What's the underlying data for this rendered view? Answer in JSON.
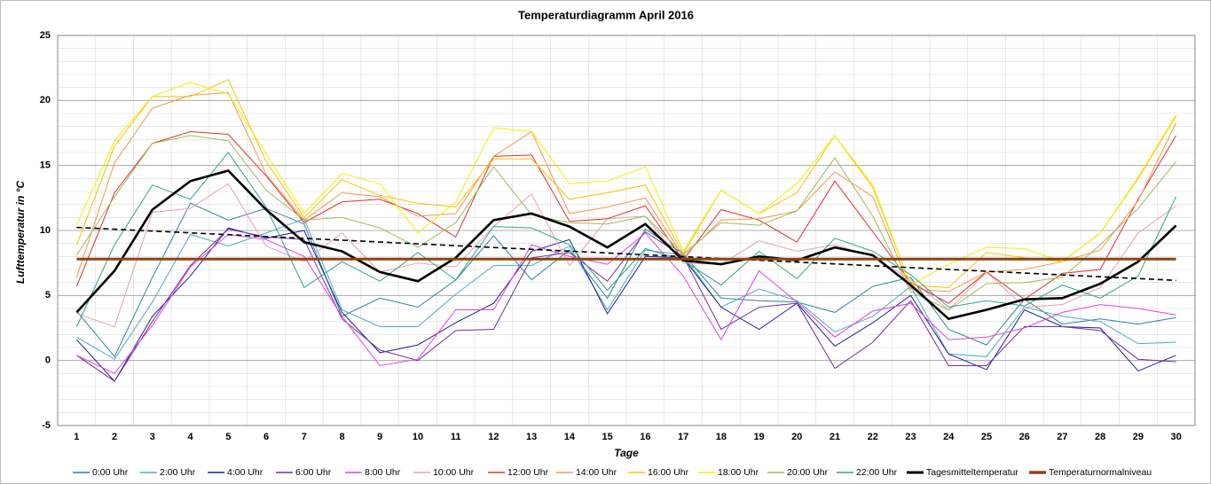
{
  "chart_data": {
    "type": "line",
    "title": "Temperaturdiagramm April 2016",
    "x_label": "Tage",
    "y_label": "Lufttemperatur in °C",
    "categories": [
      "1",
      "2",
      "3",
      "4",
      "5",
      "6",
      "7",
      "8",
      "9",
      "10",
      "11",
      "12",
      "13",
      "14",
      "15",
      "16",
      "17",
      "18",
      "19",
      "20",
      "21",
      "22",
      "23",
      "24",
      "25",
      "26",
      "27",
      "28",
      "29",
      "30"
    ],
    "ylim": [
      -5,
      25
    ],
    "yticks": [
      -5,
      0,
      5,
      10,
      15,
      20,
      25
    ],
    "grid": true,
    "legend": "bottom",
    "series": [
      {
        "name": "0:00 Uhr",
        "color": "#31849b",
        "values": [
          3.8,
          0.3,
          6.4,
          12.1,
          10.8,
          11.7,
          10.5,
          3.4,
          4.8,
          4.1,
          6.2,
          9.6,
          6.2,
          8.5,
          4.8,
          10.1,
          8.2,
          4.8,
          4.6,
          4.5,
          3.7,
          5.7,
          6.4,
          2.4,
          1.2,
          4.7,
          2.8,
          3.2,
          2.8,
          3.3
        ]
      },
      {
        "name": "2:00 Uhr",
        "color": "#4bacc6",
        "values": [
          1.8,
          0.1,
          4.5,
          9.7,
          8.8,
          9.8,
          10.9,
          3.9,
          2.6,
          2.6,
          5.1,
          7.3,
          7.3,
          8.8,
          3.9,
          8.5,
          8.1,
          4.1,
          5.5,
          4.6,
          2.2,
          3.4,
          5.7,
          0.5,
          0.3,
          4.1,
          3.4,
          3.0,
          1.3,
          1.4
        ]
      },
      {
        "name": "4:00 Uhr",
        "color": "#1f1fa0",
        "values": [
          1.6,
          -1.6,
          3.4,
          6.5,
          10.2,
          9.4,
          10.0,
          3.7,
          0.6,
          1.2,
          2.9,
          4.4,
          8.4,
          9.3,
          3.6,
          8.0,
          7.9,
          4.1,
          2.4,
          4.4,
          1.1,
          2.9,
          5.0,
          0.5,
          -0.7,
          3.9,
          2.6,
          2.5,
          -0.8,
          0.4
        ]
      },
      {
        "name": "6:00 Uhr",
        "color": "#7030a0",
        "values": [
          0.4,
          -1.6,
          3.0,
          7.3,
          10.1,
          9.5,
          9.3,
          3.2,
          0.8,
          0.0,
          2.3,
          2.4,
          7.9,
          8.3,
          6.1,
          9.9,
          8.0,
          2.4,
          4.1,
          4.4,
          -0.6,
          1.4,
          4.6,
          -0.4,
          -0.4,
          2.6,
          2.6,
          2.3,
          0.1,
          -0.1
        ]
      },
      {
        "name": "8:00 Uhr",
        "color": "#e040e0",
        "values": [
          0.4,
          -1.0,
          2.7,
          7.2,
          9.7,
          9.3,
          8.0,
          3.4,
          -0.4,
          0.1,
          3.9,
          3.9,
          8.9,
          8.0,
          7.4,
          9.8,
          6.5,
          1.6,
          6.9,
          4.5,
          1.8,
          3.8,
          4.4,
          1.6,
          1.8,
          2.5,
          3.7,
          4.3,
          4.0,
          3.5
        ]
      },
      {
        "name": "10:00 Uhr",
        "color": "#e6a0b4",
        "values": [
          3.6,
          2.6,
          11.4,
          11.7,
          13.6,
          8.8,
          7.6,
          9.8,
          6.8,
          7.5,
          7.2,
          10.3,
          12.8,
          7.3,
          10.9,
          11.1,
          7.5,
          7.4,
          9.2,
          8.4,
          8.9,
          8.0,
          6.2,
          3.9,
          6.8,
          4.1,
          4.3,
          5.6,
          9.8,
          11.9
        ]
      },
      {
        "name": "12:00 Uhr",
        "color": "#e0302c",
        "values": [
          5.7,
          12.9,
          16.7,
          17.6,
          17.4,
          14.2,
          10.6,
          12.2,
          12.4,
          11.3,
          9.5,
          15.7,
          15.8,
          10.7,
          10.9,
          11.9,
          7.7,
          11.6,
          10.8,
          9.1,
          13.8,
          9.9,
          6.0,
          4.4,
          6.8,
          4.7,
          6.7,
          7.0,
          12.4,
          17.3
        ]
      },
      {
        "name": "14:00 Uhr",
        "color": "#f79646",
        "values": [
          6.4,
          15.2,
          19.4,
          20.4,
          20.6,
          14.3,
          10.8,
          12.9,
          12.6,
          11.1,
          11.3,
          15.7,
          17.6,
          11.3,
          11.8,
          12.5,
          8.0,
          10.8,
          10.9,
          11.5,
          14.5,
          12.6,
          5.5,
          5.3,
          6.8,
          7.0,
          7.6,
          8.5,
          12.3,
          18.3
        ]
      },
      {
        "name": "16:00 Uhr",
        "color": "#ffc000",
        "values": [
          8.9,
          16.5,
          20.3,
          20.3,
          21.6,
          15.3,
          11.0,
          13.9,
          12.7,
          12.1,
          11.8,
          15.5,
          15.5,
          12.4,
          12.9,
          13.5,
          8.2,
          13.1,
          11.3,
          12.9,
          17.3,
          13.3,
          5.8,
          5.6,
          8.3,
          7.9,
          7.6,
          9.8,
          14.0,
          18.8
        ]
      },
      {
        "name": "18:00 Uhr",
        "color": "#f0f000",
        "values": [
          10.4,
          16.9,
          20.3,
          21.4,
          20.5,
          15.9,
          11.3,
          14.4,
          13.6,
          9.8,
          12.2,
          17.9,
          17.6,
          13.6,
          13.8,
          14.9,
          8.4,
          13.1,
          11.3,
          13.6,
          17.3,
          13.5,
          5.8,
          7.4,
          8.7,
          8.6,
          7.6,
          9.8,
          14.1,
          18.9
        ]
      },
      {
        "name": "20:00 Uhr",
        "color": "#9bbb59",
        "values": [
          8.1,
          12.6,
          16.7,
          17.3,
          16.9,
          13.1,
          10.8,
          11.0,
          10.2,
          8.7,
          10.6,
          14.9,
          11.2,
          10.6,
          10.5,
          11.1,
          8.2,
          10.6,
          10.4,
          11.5,
          15.6,
          11.1,
          5.3,
          3.9,
          5.9,
          6.0,
          6.4,
          8.9,
          11.7,
          15.3
        ]
      },
      {
        "name": "22:00 Uhr",
        "color": "#2ca58d",
        "values": [
          2.6,
          8.9,
          13.5,
          12.4,
          16.0,
          11.8,
          5.6,
          7.6,
          6.1,
          8.3,
          6.2,
          10.3,
          10.2,
          8.9,
          5.4,
          8.6,
          7.7,
          5.8,
          8.4,
          6.3,
          9.4,
          8.4,
          6.6,
          4.1,
          4.6,
          4.2,
          5.8,
          4.8,
          6.5,
          12.6
        ]
      },
      {
        "name": "Tagesmitteltemperatur",
        "color": "#000000",
        "trendline": true,
        "values": [
          3.7,
          6.9,
          11.6,
          13.8,
          14.6,
          11.6,
          9.1,
          8.4,
          6.8,
          6.1,
          7.9,
          10.8,
          11.3,
          10.3,
          8.7,
          10.5,
          7.7,
          7.4,
          8.0,
          7.7,
          8.7,
          8.1,
          5.8,
          3.2,
          3.9,
          4.7,
          4.8,
          5.9,
          7.6,
          10.38
        ]
      },
      {
        "name": "Temperaturnormalniveau",
        "color": "#8b4513",
        "values": [
          7.8,
          7.8,
          7.8,
          7.8,
          7.8,
          7.8,
          7.8,
          7.8,
          7.8,
          7.8,
          7.8,
          7.8,
          7.8,
          7.8,
          7.8,
          7.8,
          7.8,
          7.8,
          7.8,
          7.8,
          7.8,
          7.8,
          7.8,
          7.8,
          7.8,
          7.8,
          7.8,
          7.8,
          7.8,
          7.8
        ]
      }
    ]
  }
}
